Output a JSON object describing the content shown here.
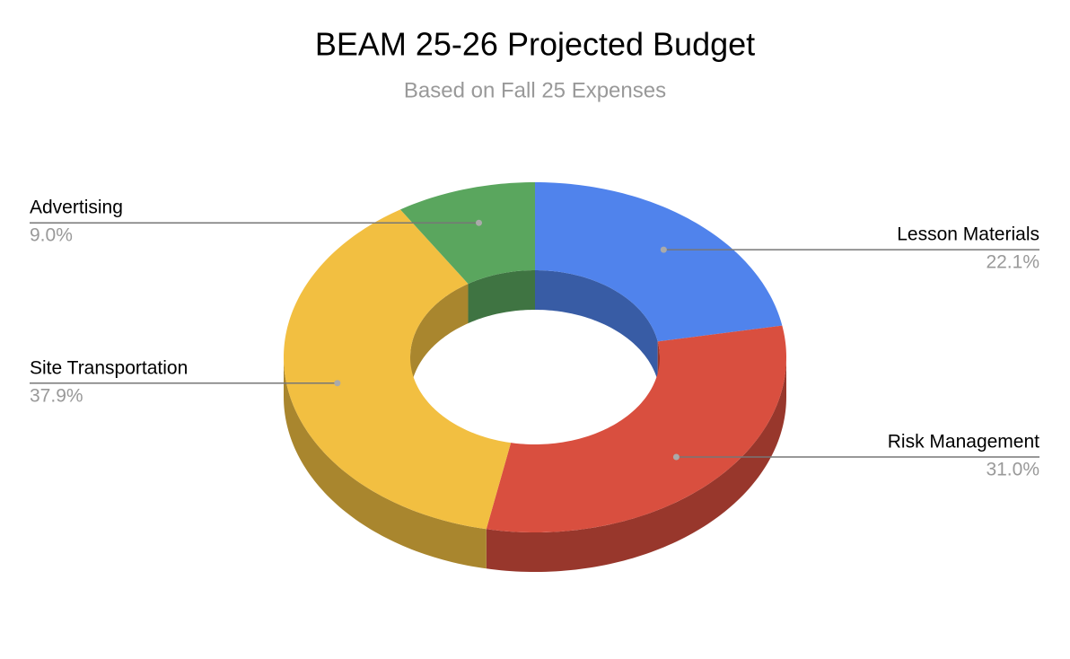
{
  "chart_data": {
    "type": "donut3d",
    "title": "BEAM 25-26 Projected Budget",
    "subtitle": "Based on Fall 25 Expenses",
    "categories": [
      "Lesson Materials",
      "Risk Management",
      "Site Transportation",
      "Advertising"
    ],
    "values": [
      22.1,
      31.0,
      37.9,
      9.0
    ],
    "value_labels": [
      "22.1%",
      "31.0%",
      "37.9%",
      "9.0%"
    ],
    "colors": [
      "#5083ec",
      "#d94f3f",
      "#f2bf41",
      "#5aa65e"
    ]
  }
}
